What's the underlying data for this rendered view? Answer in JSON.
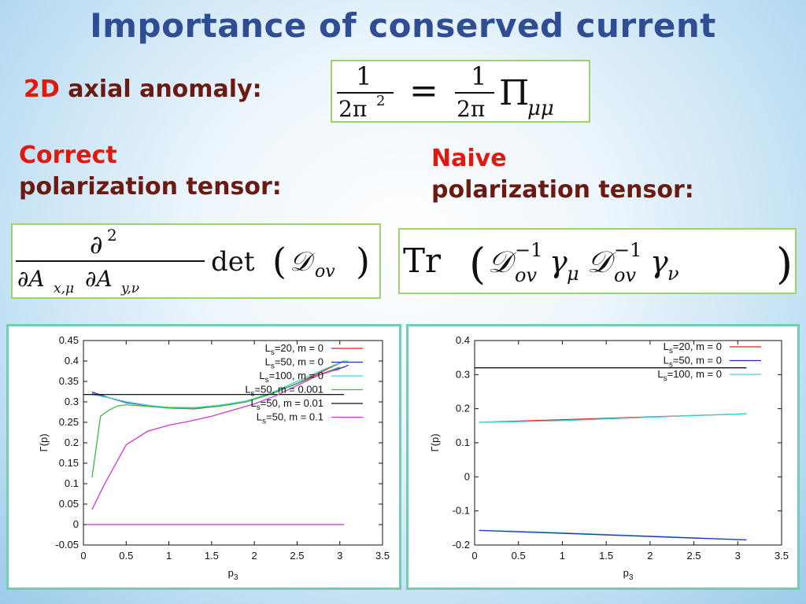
{
  "slide": {
    "title": "Importance of conserved current",
    "anomaly": {
      "prefix": "2D",
      "rest": " axial anomaly:"
    },
    "correct": {
      "line1": "Correct",
      "line2": "polarization tensor:"
    },
    "naive": {
      "line1": "Naive",
      "line2": "polarization tensor:"
    }
  },
  "colors": {
    "title": "#2f4d93",
    "label": "#6b1a12",
    "accent": "#e0180e",
    "box_border": "#9bd46a",
    "panel_border": "#6fcfb0"
  },
  "chart_data": [
    {
      "type": "line",
      "xlabel": "p3",
      "ylabel": "Γ(p)",
      "xlim": [
        0,
        3.5
      ],
      "ylim": [
        -0.05,
        0.45
      ],
      "xticks": [
        "0",
        "0.5",
        "1",
        "1.5",
        "2",
        "2.5",
        "3",
        "3.5"
      ],
      "yticks": [
        "-0.05",
        "0",
        "0.05",
        "0.1",
        "0.15",
        "0.2",
        "0.25",
        "0.3",
        "0.35",
        "0.4",
        "0.45"
      ],
      "legend_position": "top-right",
      "series": [
        {
          "name": "Ls=20, m = 0",
          "color": "#e41a1c",
          "x": [
            0.1,
            0.3,
            0.5,
            0.8,
            1.0,
            1.3,
            1.6,
            1.9,
            2.2,
            2.5,
            2.8,
            3.05
          ],
          "y": [
            0.32,
            0.31,
            0.3,
            0.29,
            0.285,
            0.283,
            0.29,
            0.3,
            0.32,
            0.345,
            0.375,
            0.4
          ]
        },
        {
          "name": "Ls=50, m = 0",
          "color": "#1f2fbf",
          "x": [
            0.1,
            0.3,
            0.5,
            0.8,
            1.0,
            1.3,
            1.6,
            1.9,
            2.2,
            2.5,
            2.8,
            3.05,
            3.1
          ],
          "y": [
            0.324,
            0.31,
            0.298,
            0.29,
            0.286,
            0.285,
            0.29,
            0.3,
            0.32,
            0.345,
            0.37,
            0.385,
            0.39
          ]
        },
        {
          "name": "Ls=100, m = 0",
          "color": "#3ad6d6",
          "x": [
            0.1,
            0.3,
            0.5,
            0.8,
            1.0,
            1.3,
            1.6,
            1.9,
            2.2,
            2.5,
            2.8,
            3.05,
            3.1
          ],
          "y": [
            0.318,
            0.31,
            0.3,
            0.29,
            0.287,
            0.286,
            0.292,
            0.302,
            0.322,
            0.35,
            0.378,
            0.4,
            0.4
          ]
        },
        {
          "name": "Ls=50, m = 0.001",
          "color": "#3cb83c",
          "x": [
            0.1,
            0.2,
            0.3,
            0.4,
            0.5,
            0.7,
            1.0,
            1.3,
            1.6,
            1.9,
            2.2,
            2.5,
            2.8,
            3.0
          ],
          "y": [
            0.115,
            0.265,
            0.28,
            0.29,
            0.293,
            0.29,
            0.285,
            0.284,
            0.29,
            0.3,
            0.32,
            0.345,
            0.37,
            0.385
          ]
        },
        {
          "name": "Ls=50, m = 0.01",
          "color": "#111111",
          "x": [
            0.0,
            3.05
          ],
          "y": [
            0.318,
            0.318
          ]
        },
        {
          "name": "Ls=50, m = 0.1",
          "color": "#d136d1",
          "x": [
            0.1,
            0.25,
            0.5,
            0.75,
            1.0,
            1.25,
            1.5,
            1.75,
            2.0,
            2.25,
            2.5,
            2.75,
            2.9,
            3.0
          ],
          "y": [
            0.037,
            0.1,
            0.195,
            0.228,
            0.243,
            0.253,
            0.265,
            0.28,
            0.295,
            0.315,
            0.34,
            0.365,
            0.375,
            0.38
          ]
        }
      ],
      "zero_line": {
        "x": [
          0.05,
          3.05
        ],
        "y": 0,
        "colors": [
          "#3ad6d6",
          "#d136d1"
        ]
      }
    },
    {
      "type": "line",
      "xlabel": "p3",
      "ylabel": "Γ(p)",
      "xlim": [
        0,
        3.5
      ],
      "ylim": [
        -0.2,
        0.4
      ],
      "xticks": [
        "0",
        "0.5",
        "1",
        "1.5",
        "2",
        "2.5",
        "3",
        "3.5"
      ],
      "yticks": [
        "-0.2",
        "-0.1",
        "0",
        "0.1",
        "0.2",
        "0.3",
        "0.4"
      ],
      "legend_position": "top-right",
      "series": [
        {
          "name": "Ls=20, m = 0",
          "color": "#e41a1c",
          "x": [
            0.05,
            3.1
          ],
          "y": [
            0.16,
            0.185
          ]
        },
        {
          "name": "Ls=50, m = 0",
          "color": "#1f2fbf",
          "x": [
            0.05,
            3.1
          ],
          "y": [
            -0.157,
            -0.185
          ]
        },
        {
          "name": "Ls=100, m = 0",
          "color": "#3ad6d6",
          "x": [
            0.05,
            0.5,
            1.0,
            1.5,
            2.0,
            2.5,
            3.1
          ],
          "y": [
            0.16,
            0.162,
            0.165,
            0.17,
            0.175,
            0.18,
            0.185
          ]
        }
      ],
      "extra_lines": [
        {
          "color": "#3ad6d6",
          "x": [
            0.05,
            0.5,
            1.0,
            1.5,
            2.0,
            2.5,
            3.1
          ],
          "y": [
            -0.157,
            -0.16,
            -0.164,
            -0.169,
            -0.174,
            -0.179,
            -0.185
          ]
        },
        {
          "color": "#111111",
          "x": [
            0.0,
            3.1
          ],
          "y": [
            0.32,
            0.32
          ]
        }
      ]
    }
  ]
}
